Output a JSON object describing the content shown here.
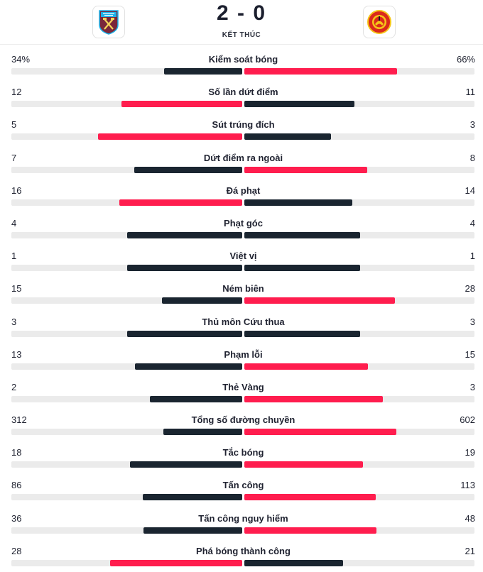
{
  "match": {
    "score": "2 - 0",
    "status": "KẾT THÚC",
    "home_team_crest": "west-ham-crest",
    "away_team_crest": "man-utd-crest"
  },
  "colors": {
    "winner": "#ff1d4e",
    "loser": "#1a2530",
    "track": "#ebebeb"
  },
  "stats": [
    {
      "label": "Kiểm soát bóng",
      "home": "34%",
      "away": "66%",
      "home_value": 34,
      "away_value": 66
    },
    {
      "label": "Số lần dứt điểm",
      "home": "12",
      "away": "11",
      "home_value": 12,
      "away_value": 11
    },
    {
      "label": "Sút trúng đích",
      "home": "5",
      "away": "3",
      "home_value": 5,
      "away_value": 3
    },
    {
      "label": "Dứt điểm ra ngoài",
      "home": "7",
      "away": "8",
      "home_value": 7,
      "away_value": 8
    },
    {
      "label": "Đá phạt",
      "home": "16",
      "away": "14",
      "home_value": 16,
      "away_value": 14
    },
    {
      "label": "Phạt góc",
      "home": "4",
      "away": "4",
      "home_value": 4,
      "away_value": 4
    },
    {
      "label": "Việt vị",
      "home": "1",
      "away": "1",
      "home_value": 1,
      "away_value": 1
    },
    {
      "label": "Ném biên",
      "home": "15",
      "away": "28",
      "home_value": 15,
      "away_value": 28
    },
    {
      "label": "Thủ môn Cứu thua",
      "home": "3",
      "away": "3",
      "home_value": 3,
      "away_value": 3
    },
    {
      "label": "Phạm lỗi",
      "home": "13",
      "away": "15",
      "home_value": 13,
      "away_value": 15
    },
    {
      "label": "Thẻ Vàng",
      "home": "2",
      "away": "3",
      "home_value": 2,
      "away_value": 3
    },
    {
      "label": "Tổng số đường chuyền",
      "home": "312",
      "away": "602",
      "home_value": 312,
      "away_value": 602
    },
    {
      "label": "Tắc bóng",
      "home": "18",
      "away": "19",
      "home_value": 18,
      "away_value": 19
    },
    {
      "label": "Tấn công",
      "home": "86",
      "away": "113",
      "home_value": 86,
      "away_value": 113
    },
    {
      "label": "Tấn công nguy hiểm",
      "home": "36",
      "away": "48",
      "home_value": 36,
      "away_value": 48
    },
    {
      "label": "Phá bóng thành công",
      "home": "28",
      "away": "21",
      "home_value": 28,
      "away_value": 21
    }
  ]
}
